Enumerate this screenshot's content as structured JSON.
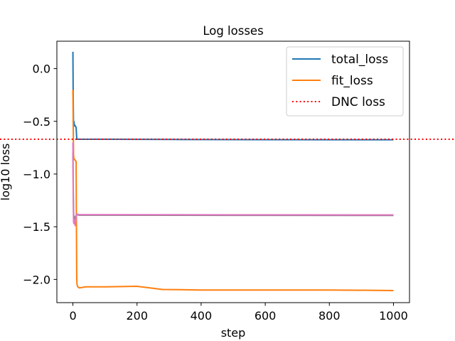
{
  "chart_data": {
    "type": "line",
    "title": "Log losses",
    "xlabel": "step",
    "ylabel": "log10 loss",
    "xlim": [
      -50,
      1050
    ],
    "ylim": [
      -2.22,
      0.26
    ],
    "xticks": [
      0,
      200,
      400,
      600,
      800,
      1000
    ],
    "yticks": [
      0.0,
      -0.5,
      -1.0,
      -1.5,
      -2.0
    ],
    "xtick_labels": [
      "0",
      "200",
      "400",
      "600",
      "800",
      "1000"
    ],
    "ytick_labels": [
      "0.0",
      "−0.5",
      "−1.0",
      "−1.5",
      "−2.0"
    ],
    "grid": false,
    "legend_position": "top-right",
    "series": [
      {
        "name": "total_loss",
        "color": "#1f77b4",
        "style": "solid",
        "x": [
          0,
          1,
          2,
          3,
          4,
          5,
          7,
          10,
          12,
          14,
          18,
          30,
          100,
          300,
          600,
          900,
          1000
        ],
        "y": [
          0.16,
          -0.3,
          -0.55,
          -0.5,
          -0.52,
          -0.54,
          -0.54,
          -0.56,
          -0.66,
          -0.67,
          -0.67,
          -0.67,
          -0.67,
          -0.672,
          -0.674,
          -0.675,
          -0.675
        ]
      },
      {
        "name": "fit_loss",
        "color": "#ff7f0e",
        "style": "solid",
        "x": [
          0,
          1,
          2,
          3,
          4,
          5,
          7,
          10,
          11,
          12,
          13,
          15,
          20,
          40,
          100,
          200,
          240,
          280,
          400,
          600,
          800,
          1000
        ],
        "y": [
          -0.2,
          -0.55,
          -0.82,
          -0.85,
          -0.86,
          -0.86,
          -0.87,
          -0.88,
          -1.5,
          -2.0,
          -2.05,
          -2.07,
          -2.08,
          -2.07,
          -2.07,
          -2.065,
          -2.08,
          -2.095,
          -2.1,
          -2.1,
          -2.1,
          -2.105
        ]
      },
      {
        "name": "",
        "color": "#e377c2",
        "style": "solid",
        "x": [
          0,
          1,
          2,
          3,
          5,
          7,
          9,
          10,
          12,
          20,
          100,
          500,
          1000
        ],
        "y": [
          -0.7,
          -1.2,
          -1.45,
          -1.47,
          -1.43,
          -1.49,
          -1.44,
          -1.39,
          -1.38,
          -1.385,
          -1.385,
          -1.387,
          -1.388
        ]
      },
      {
        "name": "",
        "color": "#7f7f7f",
        "style": "solid",
        "x": [
          0,
          1,
          2,
          3,
          4,
          6,
          8,
          10,
          12,
          20,
          100,
          500,
          1000
        ],
        "y": [
          -0.8,
          -1.1,
          -1.35,
          -1.44,
          -1.4,
          -1.45,
          -1.42,
          -1.39,
          -1.385,
          -1.39,
          -1.39,
          -1.392,
          -1.393
        ]
      },
      {
        "name": "DNC loss",
        "color": "#ff0000",
        "style": "dotted",
        "hline": -0.67
      }
    ]
  }
}
